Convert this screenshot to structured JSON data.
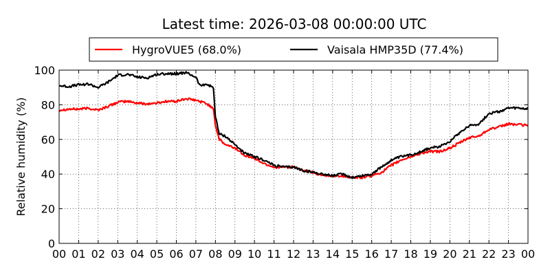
{
  "chart_data": {
    "type": "line",
    "title": "Latest time: 2026-03-08 00:00:00 UTC",
    "xlabel": "",
    "ylabel": "Relative humidity (%)",
    "xlim": [
      0,
      24
    ],
    "ylim": [
      0,
      100
    ],
    "x_tick_labels": [
      "00",
      "01",
      "02",
      "03",
      "04",
      "05",
      "06",
      "07",
      "08",
      "09",
      "10",
      "11",
      "12",
      "13",
      "14",
      "15",
      "16",
      "17",
      "18",
      "19",
      "20",
      "21",
      "22",
      "23",
      "00"
    ],
    "y_ticks": [
      0,
      20,
      40,
      60,
      80,
      100
    ],
    "grid": true,
    "legend_position": "top",
    "series": [
      {
        "name": "HygroVUE5 (68.0%)",
        "color": "#ff0000",
        "x": [
          0,
          0.5,
          1,
          1.5,
          2,
          2.5,
          3,
          3.5,
          4,
          4.5,
          5,
          5.5,
          6,
          6.5,
          7,
          7.5,
          7.9,
          8,
          8.2,
          8.5,
          9,
          9.5,
          10,
          10.5,
          11,
          11.5,
          12,
          12.5,
          13,
          13.5,
          14,
          14.5,
          15,
          15.5,
          16,
          16.5,
          17,
          17.5,
          18,
          18.5,
          19,
          19.5,
          20,
          20.5,
          21,
          21.5,
          22,
          22.5,
          23,
          23.5,
          24
        ],
        "y": [
          77,
          77.5,
          77.5,
          78,
          77,
          79,
          81.5,
          82,
          81,
          80.5,
          81,
          82,
          82,
          83.5,
          82.5,
          81,
          78,
          68,
          60,
          57,
          55,
          51,
          49,
          46,
          44,
          44,
          44,
          42,
          41,
          39,
          39,
          39,
          38,
          38,
          39,
          41,
          45,
          48,
          50,
          52,
          53,
          53,
          55,
          58,
          61,
          62,
          66,
          67,
          69,
          68.5,
          68
        ]
      },
      {
        "name": "Vaisala HMP35D (77.4%)",
        "color": "#000000",
        "x": [
          0,
          0.5,
          1,
          1.5,
          2,
          2.5,
          3,
          3.5,
          4,
          4.5,
          5,
          5.5,
          6,
          6.5,
          7,
          7.2,
          7.5,
          7.9,
          8,
          8.2,
          8.5,
          9,
          9.5,
          10,
          10.5,
          11,
          11.5,
          12,
          12.5,
          13,
          13.5,
          14,
          14.5,
          15,
          15.5,
          16,
          16.5,
          17,
          17.5,
          18,
          18.5,
          19,
          19.5,
          20,
          20.5,
          21,
          21.5,
          22,
          22.5,
          23,
          23.5,
          24
        ],
        "y": [
          91,
          90.5,
          91.5,
          92,
          90,
          93,
          97,
          97.5,
          96,
          95.5,
          97.5,
          98,
          98,
          98.5,
          96,
          91,
          92,
          90,
          73,
          63,
          62,
          57,
          52,
          50,
          48,
          45,
          44,
          44,
          42,
          41,
          40,
          39,
          40,
          38,
          39,
          40,
          44,
          48,
          50,
          51,
          53,
          55,
          56,
          59,
          64,
          68,
          69,
          75,
          76,
          78,
          78,
          77.5
        ]
      }
    ]
  }
}
